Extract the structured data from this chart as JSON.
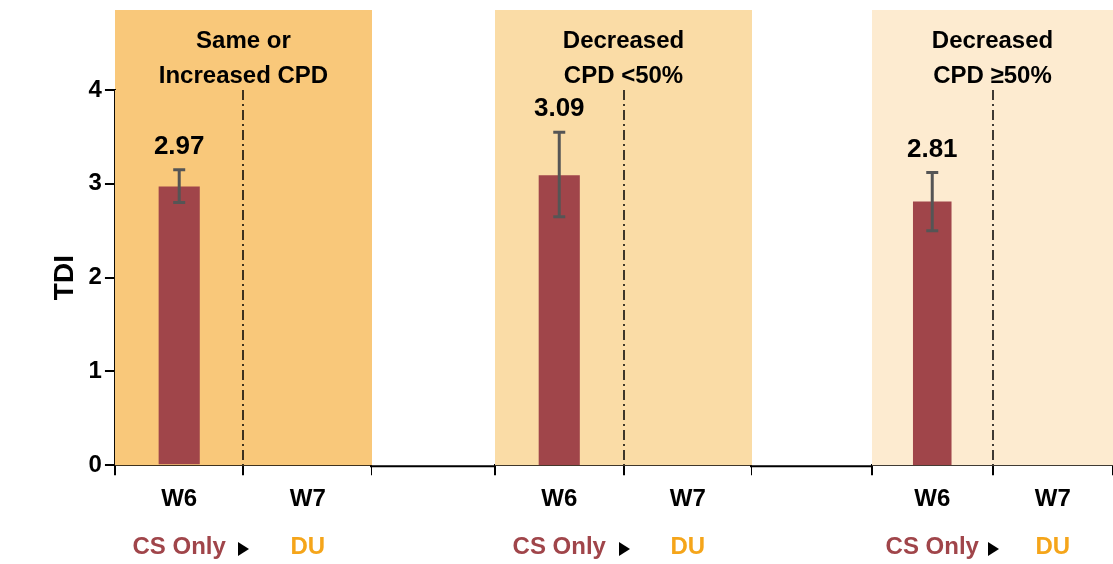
{
  "chart_data": [
    {
      "type": "bar",
      "ylabel": "TDI",
      "categories": [
        "W6",
        "W7"
      ],
      "series": [
        {
          "color": "#a0454a",
          "values": [
            2.97,
            0
          ],
          "errors": [
            [
              2.8,
              3.15
            ],
            null
          ],
          "value_labels": [
            "2.97",
            null
          ]
        }
      ],
      "ylim": [
        0,
        4
      ],
      "yticks": [
        0,
        1,
        2,
        3,
        4
      ],
      "grid": false,
      "legend": false,
      "bands": [
        {
          "axis": "x",
          "from": "W6",
          "to": "W7",
          "label": "Same or\nIncreased CPD",
          "color": "#f9c87a"
        }
      ],
      "annotations": [
        "CS Only",
        "DU"
      ]
    },
    {
      "type": "bar",
      "categories": [
        "W6",
        "W7"
      ],
      "series": [
        {
          "color": "#a0454a",
          "values": [
            3.09,
            0
          ],
          "errors": [
            [
              2.65,
              3.55
            ],
            null
          ],
          "value_labels": [
            "3.09",
            null
          ]
        }
      ],
      "ylim": [
        0,
        4
      ],
      "tick_labels": "x",
      "grid": false,
      "legend": false,
      "bands": [
        {
          "axis": "x",
          "from": "W6",
          "to": "W7",
          "label": "Decreased\nCPD <50%",
          "color": "#fadca6"
        }
      ],
      "annotations": [
        "CS Only",
        "DU"
      ]
    },
    {
      "type": "bar",
      "categories": [
        "W6",
        "W7"
      ],
      "series": [
        {
          "color": "#a0454a",
          "values": [
            2.81,
            0
          ],
          "errors": [
            [
              2.5,
              3.12
            ],
            null
          ],
          "value_labels": [
            "2.81",
            null
          ]
        }
      ],
      "ylim": [
        0,
        4
      ],
      "tick_labels": "x",
      "grid": false,
      "legend": false,
      "bands": [
        {
          "axis": "x",
          "from": "W6",
          "to": "W7",
          "label": "Decreased\nCPD ≥50%",
          "color": "#fdebd0"
        }
      ],
      "annotations": [
        "CS Only",
        "DU"
      ]
    }
  ]
}
